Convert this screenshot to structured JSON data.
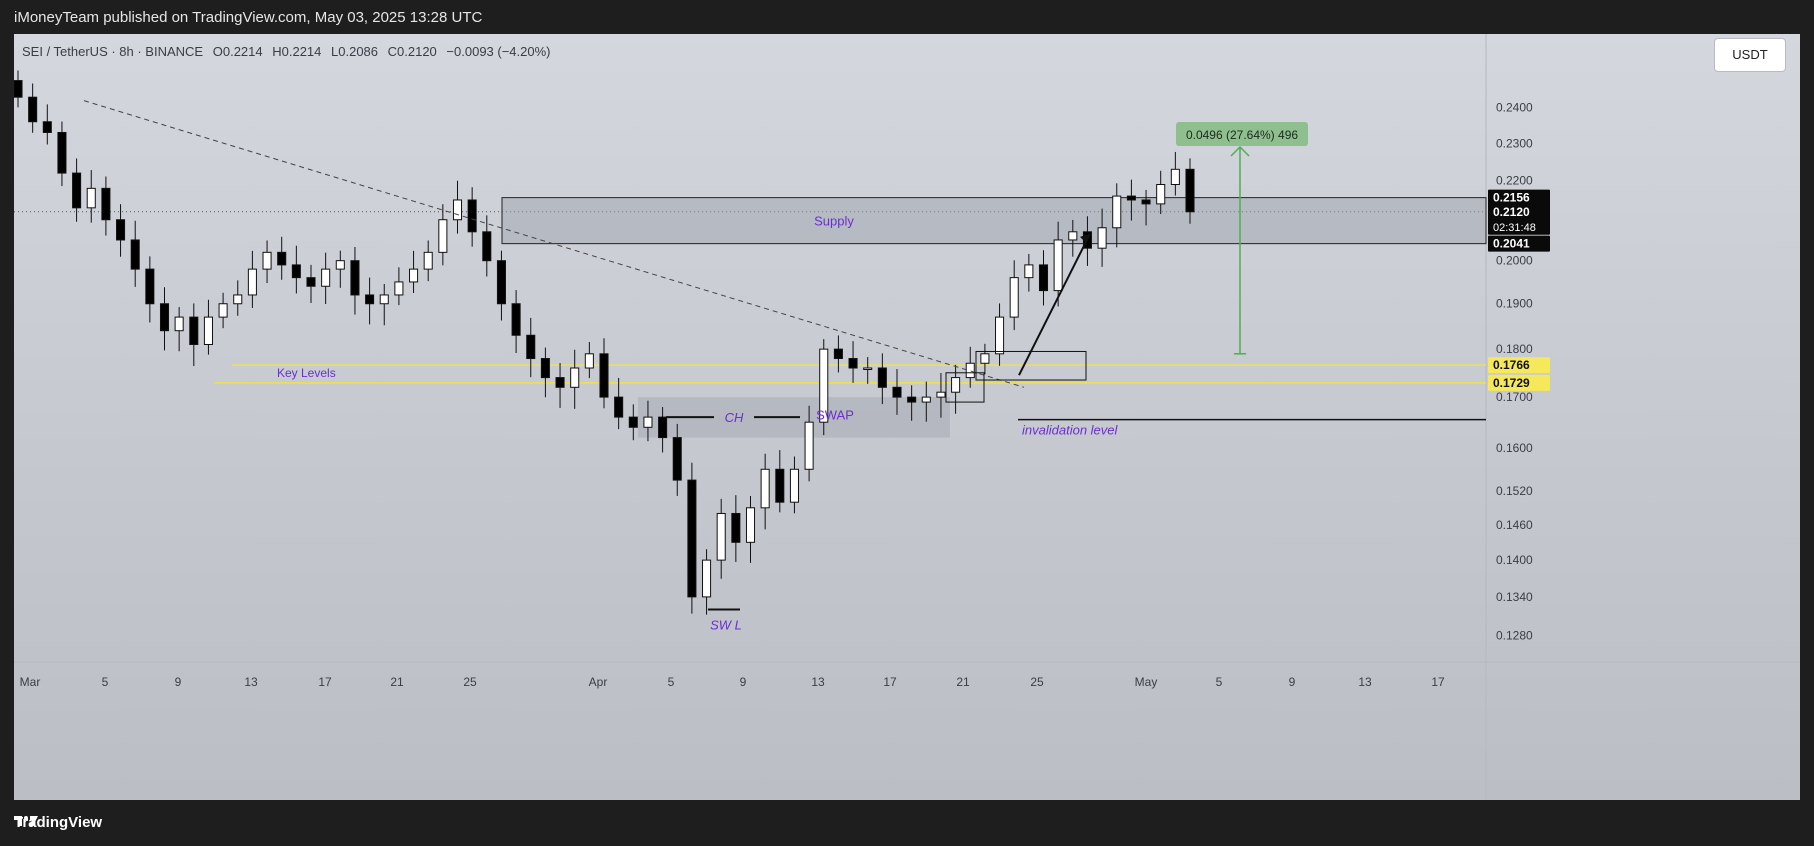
{
  "header": {
    "published": "iMoneyTeam published on TradingView.com, May 03, 2025 13:28 UTC"
  },
  "legend": {
    "symbol": "SEI / TetherUS · 8h · BINANCE",
    "open": "O0.2214",
    "high": "H0.2214",
    "low": "L0.2086",
    "close": "C0.2120",
    "change": "−0.0093 (−4.20%)"
  },
  "currency_button": "USDT",
  "footer": {
    "brand": "TradingView"
  },
  "colors": {
    "up": "#ffffff",
    "down": "#000000",
    "key_levels": "#f0e14a",
    "annotation_text": "#6b2fd1",
    "target_arrow": "#4caf50"
  },
  "chart_data": {
    "type": "candlestick",
    "symbol": "SEI/USDT",
    "interval": "8h",
    "yscale": "log",
    "ylim": [
      0.124,
      0.262
    ],
    "y_ticks": [
      "0.2400",
      "0.2300",
      "0.2200",
      "0.2100",
      "0.2000",
      "0.1900",
      "0.1800",
      "0.1700",
      "0.1600",
      "0.1520",
      "0.1460",
      "0.1400",
      "0.1340",
      "0.1280"
    ],
    "x_ticks": [
      "Mar",
      "5",
      "9",
      "13",
      "17",
      "21",
      "25",
      "Apr",
      "5",
      "9",
      "13",
      "17",
      "21",
      "25",
      "May",
      "5",
      "9",
      "13",
      "17"
    ],
    "price_labels": [
      {
        "value": 0.2156,
        "text": "0.2156",
        "style": "dark"
      },
      {
        "value": 0.212,
        "text": "0.2120",
        "style": "dark",
        "sub": "02:31:48"
      },
      {
        "value": 0.2041,
        "text": "0.2041",
        "style": "dark"
      },
      {
        "value": 0.1766,
        "text": "0.1766",
        "style": "yellow"
      },
      {
        "value": 0.1729,
        "text": "0.1729",
        "style": "yellow"
      }
    ],
    "annotations": {
      "supply": "Supply",
      "key_levels": "Key Levels",
      "ch": "CH",
      "swap": "SWAP",
      "sw_low": "SW L",
      "invalidation": "invalidation level",
      "target": "0.0496 (27.64%) 496"
    },
    "levels": {
      "supply_top": 0.2156,
      "supply_bottom": 0.2041,
      "key_high": 0.1766,
      "key_low": 0.1729,
      "invalidation": 0.1655,
      "target_high": 0.229,
      "target_base": 0.179
    },
    "close_path": [
      0.243,
      0.236,
      0.233,
      0.222,
      0.213,
      0.218,
      0.21,
      0.205,
      0.198,
      0.19,
      0.184,
      0.187,
      0.181,
      0.187,
      0.19,
      0.192,
      0.198,
      0.202,
      0.199,
      0.196,
      0.194,
      0.198,
      0.2,
      0.192,
      0.19,
      0.192,
      0.195,
      0.198,
      0.202,
      0.21,
      0.215,
      0.207,
      0.2,
      0.19,
      0.183,
      0.178,
      0.174,
      0.172,
      0.176,
      0.179,
      0.17,
      0.166,
      0.164,
      0.166,
      0.162,
      0.154,
      0.134,
      0.14,
      0.148,
      0.143,
      0.149,
      0.156,
      0.15,
      0.156,
      0.165,
      0.18,
      0.178,
      0.176,
      0.176,
      0.172,
      0.17,
      0.169,
      0.17,
      0.171,
      0.174,
      0.177,
      0.179,
      0.187,
      0.196,
      0.199,
      0.193,
      0.205,
      0.207,
      0.203,
      0.208,
      0.216,
      0.215,
      0.214,
      0.219,
      0.223,
      0.212
    ]
  }
}
